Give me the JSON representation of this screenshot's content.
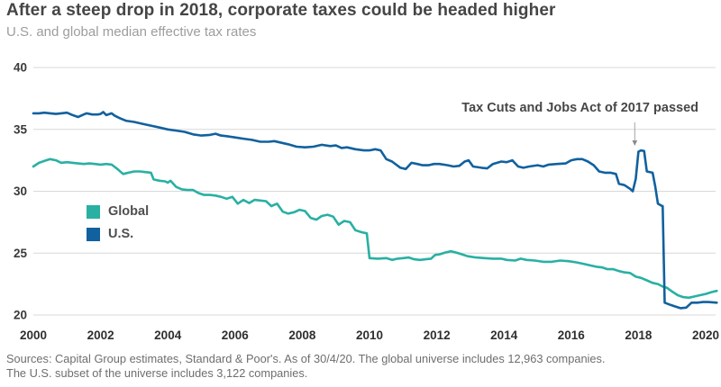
{
  "header": {
    "title": "After a steep drop in 2018, corporate taxes could be headed higher",
    "subtitle": "U.S. and global median effective tax rates"
  },
  "chart_data": {
    "type": "line",
    "title": "After a steep drop in 2018, corporate taxes could be headed higher",
    "subtitle": "U.S. and global median effective tax rates",
    "xlabel": "",
    "ylabel": "",
    "ylim": [
      20,
      40
    ],
    "xlim": [
      2000,
      2020.4
    ],
    "y_ticks": [
      40,
      35,
      30,
      25,
      20
    ],
    "x_ticks": [
      2000,
      2002,
      2004,
      2006,
      2008,
      2010,
      2012,
      2014,
      2016,
      2018,
      2020
    ],
    "grid": "horizontal",
    "legend_position": "inside-left",
    "annotation": {
      "text": "Tax Cuts and Jobs Act of 2017 passed",
      "year": 2017.89,
      "points_to_value": 33.6
    },
    "series": [
      {
        "name": "Global",
        "color": "#29b0a3",
        "points": [
          [
            2000.0,
            32.0
          ],
          [
            2000.17,
            32.3
          ],
          [
            2000.33,
            32.45
          ],
          [
            2000.5,
            32.6
          ],
          [
            2000.67,
            32.5
          ],
          [
            2000.83,
            32.3
          ],
          [
            2001.0,
            32.35
          ],
          [
            2001.17,
            32.3
          ],
          [
            2001.33,
            32.25
          ],
          [
            2001.5,
            32.2
          ],
          [
            2001.67,
            32.25
          ],
          [
            2001.83,
            32.2
          ],
          [
            2002.0,
            32.15
          ],
          [
            2002.17,
            32.2
          ],
          [
            2002.33,
            32.15
          ],
          [
            2002.5,
            31.8
          ],
          [
            2002.67,
            31.4
          ],
          [
            2002.83,
            31.5
          ],
          [
            2003.0,
            31.6
          ],
          [
            2003.17,
            31.6
          ],
          [
            2003.33,
            31.55
          ],
          [
            2003.5,
            31.5
          ],
          [
            2003.58,
            30.95
          ],
          [
            2003.75,
            30.85
          ],
          [
            2003.92,
            30.8
          ],
          [
            2004.0,
            30.7
          ],
          [
            2004.08,
            30.85
          ],
          [
            2004.25,
            30.35
          ],
          [
            2004.42,
            30.15
          ],
          [
            2004.58,
            30.1
          ],
          [
            2004.75,
            30.1
          ],
          [
            2004.92,
            29.85
          ],
          [
            2005.08,
            29.7
          ],
          [
            2005.25,
            29.7
          ],
          [
            2005.42,
            29.65
          ],
          [
            2005.58,
            29.55
          ],
          [
            2005.75,
            29.4
          ],
          [
            2005.92,
            29.55
          ],
          [
            2006.08,
            29.0
          ],
          [
            2006.25,
            29.3
          ],
          [
            2006.42,
            29.05
          ],
          [
            2006.58,
            29.3
          ],
          [
            2006.75,
            29.25
          ],
          [
            2006.92,
            29.2
          ],
          [
            2007.08,
            28.8
          ],
          [
            2007.25,
            29.0
          ],
          [
            2007.42,
            28.35
          ],
          [
            2007.58,
            28.2
          ],
          [
            2007.75,
            28.3
          ],
          [
            2007.92,
            28.5
          ],
          [
            2008.08,
            28.4
          ],
          [
            2008.25,
            27.85
          ],
          [
            2008.42,
            27.7
          ],
          [
            2008.58,
            28.0
          ],
          [
            2008.75,
            28.1
          ],
          [
            2008.92,
            27.95
          ],
          [
            2009.08,
            27.3
          ],
          [
            2009.25,
            27.6
          ],
          [
            2009.42,
            27.5
          ],
          [
            2009.58,
            26.85
          ],
          [
            2009.75,
            26.7
          ],
          [
            2009.92,
            26.6
          ],
          [
            2010.0,
            24.6
          ],
          [
            2010.25,
            24.55
          ],
          [
            2010.5,
            24.6
          ],
          [
            2010.67,
            24.45
          ],
          [
            2010.83,
            24.55
          ],
          [
            2011.0,
            24.6
          ],
          [
            2011.17,
            24.65
          ],
          [
            2011.33,
            24.5
          ],
          [
            2011.5,
            24.45
          ],
          [
            2011.67,
            24.5
          ],
          [
            2011.83,
            24.55
          ],
          [
            2011.95,
            24.85
          ],
          [
            2012.08,
            24.9
          ],
          [
            2012.25,
            25.05
          ],
          [
            2012.42,
            25.15
          ],
          [
            2012.58,
            25.05
          ],
          [
            2012.75,
            24.9
          ],
          [
            2012.92,
            24.75
          ],
          [
            2013.17,
            24.65
          ],
          [
            2013.42,
            24.6
          ],
          [
            2013.67,
            24.55
          ],
          [
            2013.92,
            24.55
          ],
          [
            2014.08,
            24.45
          ],
          [
            2014.33,
            24.4
          ],
          [
            2014.5,
            24.55
          ],
          [
            2014.67,
            24.45
          ],
          [
            2014.92,
            24.4
          ],
          [
            2015.17,
            24.3
          ],
          [
            2015.42,
            24.3
          ],
          [
            2015.67,
            24.4
          ],
          [
            2015.92,
            24.35
          ],
          [
            2016.17,
            24.25
          ],
          [
            2016.42,
            24.1
          ],
          [
            2016.58,
            24.0
          ],
          [
            2016.75,
            23.9
          ],
          [
            2016.92,
            23.85
          ],
          [
            2017.08,
            23.7
          ],
          [
            2017.25,
            23.7
          ],
          [
            2017.42,
            23.55
          ],
          [
            2017.58,
            23.45
          ],
          [
            2017.75,
            23.4
          ],
          [
            2017.92,
            23.1
          ],
          [
            2018.08,
            23.0
          ],
          [
            2018.25,
            22.8
          ],
          [
            2018.42,
            22.6
          ],
          [
            2018.58,
            22.5
          ],
          [
            2018.72,
            22.3
          ],
          [
            2018.85,
            22.2
          ],
          [
            2019.0,
            21.9
          ],
          [
            2019.17,
            21.6
          ],
          [
            2019.33,
            21.45
          ],
          [
            2019.5,
            21.4
          ],
          [
            2019.67,
            21.5
          ],
          [
            2019.83,
            21.6
          ],
          [
            2020.0,
            21.7
          ],
          [
            2020.17,
            21.85
          ],
          [
            2020.33,
            21.95
          ]
        ]
      },
      {
        "name": "U.S.",
        "color": "#11619e",
        "points": [
          [
            2000.0,
            36.3
          ],
          [
            2000.17,
            36.3
          ],
          [
            2000.33,
            36.35
          ],
          [
            2000.5,
            36.3
          ],
          [
            2000.67,
            36.25
          ],
          [
            2000.83,
            36.3
          ],
          [
            2001.0,
            36.35
          ],
          [
            2001.17,
            36.15
          ],
          [
            2001.33,
            36.0
          ],
          [
            2001.5,
            36.2
          ],
          [
            2001.58,
            36.3
          ],
          [
            2001.75,
            36.2
          ],
          [
            2001.92,
            36.2
          ],
          [
            2002.0,
            36.25
          ],
          [
            2002.08,
            36.4
          ],
          [
            2002.17,
            36.15
          ],
          [
            2002.33,
            36.3
          ],
          [
            2002.42,
            36.1
          ],
          [
            2002.58,
            35.9
          ],
          [
            2002.75,
            35.7
          ],
          [
            2003.0,
            35.6
          ],
          [
            2003.25,
            35.45
          ],
          [
            2003.5,
            35.3
          ],
          [
            2003.75,
            35.15
          ],
          [
            2004.0,
            35.0
          ],
          [
            2004.25,
            34.9
          ],
          [
            2004.5,
            34.8
          ],
          [
            2004.75,
            34.6
          ],
          [
            2005.0,
            34.5
          ],
          [
            2005.25,
            34.55
          ],
          [
            2005.42,
            34.65
          ],
          [
            2005.58,
            34.5
          ],
          [
            2005.75,
            34.45
          ],
          [
            2006.0,
            34.35
          ],
          [
            2006.25,
            34.25
          ],
          [
            2006.5,
            34.15
          ],
          [
            2006.75,
            34.0
          ],
          [
            2007.0,
            34.0
          ],
          [
            2007.17,
            34.05
          ],
          [
            2007.33,
            33.95
          ],
          [
            2007.58,
            33.8
          ],
          [
            2007.83,
            33.6
          ],
          [
            2008.08,
            33.55
          ],
          [
            2008.33,
            33.6
          ],
          [
            2008.58,
            33.75
          ],
          [
            2008.83,
            33.65
          ],
          [
            2009.0,
            33.7
          ],
          [
            2009.17,
            33.5
          ],
          [
            2009.33,
            33.55
          ],
          [
            2009.58,
            33.4
          ],
          [
            2009.83,
            33.3
          ],
          [
            2010.0,
            33.3
          ],
          [
            2010.17,
            33.4
          ],
          [
            2010.33,
            33.3
          ],
          [
            2010.5,
            32.6
          ],
          [
            2010.67,
            32.4
          ],
          [
            2010.92,
            31.9
          ],
          [
            2011.08,
            31.8
          ],
          [
            2011.25,
            32.3
          ],
          [
            2011.42,
            32.2
          ],
          [
            2011.58,
            32.1
          ],
          [
            2011.75,
            32.1
          ],
          [
            2011.92,
            32.2
          ],
          [
            2012.08,
            32.2
          ],
          [
            2012.33,
            32.1
          ],
          [
            2012.5,
            32.0
          ],
          [
            2012.67,
            32.05
          ],
          [
            2012.83,
            32.4
          ],
          [
            2012.95,
            32.5
          ],
          [
            2013.08,
            32.0
          ],
          [
            2013.33,
            31.9
          ],
          [
            2013.5,
            31.85
          ],
          [
            2013.67,
            32.2
          ],
          [
            2013.92,
            32.4
          ],
          [
            2014.08,
            32.35
          ],
          [
            2014.25,
            32.5
          ],
          [
            2014.42,
            32.0
          ],
          [
            2014.58,
            31.9
          ],
          [
            2014.75,
            32.0
          ],
          [
            2015.0,
            32.1
          ],
          [
            2015.17,
            32.0
          ],
          [
            2015.33,
            32.15
          ],
          [
            2015.58,
            32.2
          ],
          [
            2015.83,
            32.25
          ],
          [
            2016.0,
            32.5
          ],
          [
            2016.17,
            32.6
          ],
          [
            2016.33,
            32.6
          ],
          [
            2016.5,
            32.4
          ],
          [
            2016.67,
            32.1
          ],
          [
            2016.83,
            31.6
          ],
          [
            2017.0,
            31.5
          ],
          [
            2017.17,
            31.5
          ],
          [
            2017.33,
            31.4
          ],
          [
            2017.42,
            30.6
          ],
          [
            2017.58,
            30.5
          ],
          [
            2017.75,
            30.2
          ],
          [
            2017.83,
            30.0
          ],
          [
            2017.92,
            31.0
          ],
          [
            2018.0,
            33.2
          ],
          [
            2018.08,
            33.3
          ],
          [
            2018.17,
            33.25
          ],
          [
            2018.25,
            31.6
          ],
          [
            2018.42,
            31.5
          ],
          [
            2018.5,
            30.4
          ],
          [
            2018.58,
            29.0
          ],
          [
            2018.67,
            28.85
          ],
          [
            2018.72,
            28.8
          ],
          [
            2018.78,
            21.0
          ],
          [
            2018.92,
            20.85
          ],
          [
            2019.08,
            20.7
          ],
          [
            2019.25,
            20.55
          ],
          [
            2019.42,
            20.6
          ],
          [
            2019.58,
            21.0
          ],
          [
            2019.75,
            21.0
          ],
          [
            2019.92,
            21.05
          ],
          [
            2020.08,
            21.05
          ],
          [
            2020.33,
            21.0
          ]
        ]
      }
    ]
  },
  "footer": {
    "source_line1": "Sources: Capital Group estimates, Standard & Poor's. As of 30/4/20. The global universe includes 12,963 companies.",
    "source_line2": "The U.S. subset of the universe includes 3,122 companies."
  }
}
